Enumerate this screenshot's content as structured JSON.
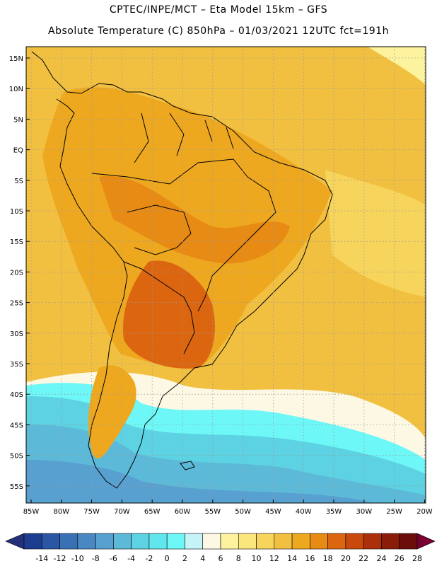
{
  "header": {
    "line1": "CPTEC/INPE/MCT –  Eta Model 15km – GFS",
    "line2": "Absolute Temperature (C) 850hPa – 01/03/2021 12UTC fct=191h"
  },
  "lat_labels": [
    "15N",
    "10N",
    "5N",
    "EQ",
    "5S",
    "10S",
    "15S",
    "20S",
    "25S",
    "30S",
    "35S",
    "40S",
    "45S",
    "50S",
    "55S"
  ],
  "lon_labels": [
    "85W",
    "80W",
    "75W",
    "70W",
    "65W",
    "60W",
    "55W",
    "50W",
    "45W",
    "40W",
    "35W",
    "30W",
    "25W",
    "20W"
  ],
  "colorbar": {
    "labels": [
      "-14",
      "-12",
      "-10",
      "-8",
      "-6",
      "-4",
      "-2",
      "0",
      "2",
      "4",
      "6",
      "8",
      "10",
      "12",
      "14",
      "16",
      "18",
      "20",
      "22",
      "24",
      "26",
      "28"
    ],
    "colors": [
      "#1c3d8f",
      "#2a56a3",
      "#3a71b5",
      "#4a88c4",
      "#58a0d0",
      "#5cbad8",
      "#5dd2e2",
      "#60e6ec",
      "#6ef7f7",
      "#c6f3f8",
      "#fdf8e4",
      "#fdf39f",
      "#fbe57d",
      "#f7d45b",
      "#f2c040",
      "#eea820",
      "#e88b14",
      "#dc6610",
      "#c9480b",
      "#ad2e0a",
      "#8a1c0a",
      "#6b0e0a"
    ],
    "under_color": "#24317a",
    "over_color": "#7a0033"
  },
  "field_colors": {
    "band_28_30": "#f7d45b",
    "band_30_32": "#fbe57d",
    "band_32_34": "#f2c040",
    "band_34_36": "#fdf39f",
    "band_36_38": "#fdf8e4",
    "band_38_40": "#c6f3f8",
    "land_base": "#eea820",
    "land_warm": "#e88b14",
    "land_hot": "#dc6610",
    "ocean_n": "#f2c040",
    "cold_1": "#6ef7f7",
    "cold_2": "#5dd2e2",
    "cold_3": "#5cbad8",
    "cold_4": "#58a0d0",
    "cold_5": "#4a88c4"
  }
}
